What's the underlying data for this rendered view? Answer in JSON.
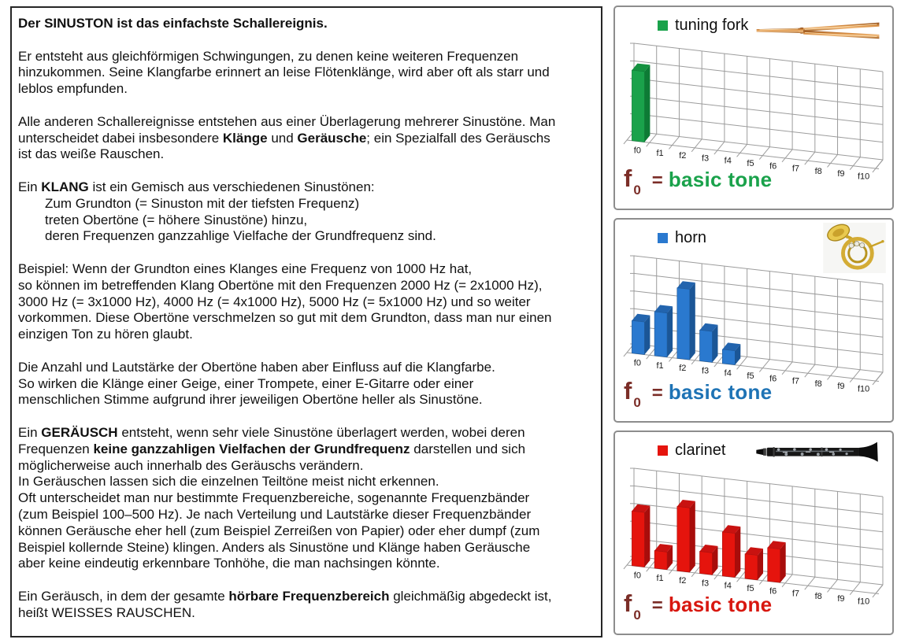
{
  "document": {
    "blocks": [
      {
        "lines": [
          {
            "seg": [
              {
                "t": "Der SINUSTON ist das einfachste Schallereignis.",
                "b": true
              }
            ]
          }
        ]
      },
      {
        "lines": [
          {
            "seg": [
              {
                "t": "Er entsteht aus gleichförmigen Schwingungen, zu denen keine weiteren Frequenzen"
              }
            ]
          },
          {
            "seg": [
              {
                "t": "hinzukommen. Seine Klangfarbe erinnert an leise Flötenklänge, wird aber oft als starr und"
              }
            ]
          },
          {
            "seg": [
              {
                "t": "leblos empfunden."
              }
            ]
          }
        ]
      },
      {
        "lines": [
          {
            "seg": [
              {
                "t": "Alle anderen Schallereignisse entstehen aus einer Überlagerung mehrerer Sinustöne. Man"
              }
            ]
          },
          {
            "seg": [
              {
                "t": "unterscheidet dabei insbesondere "
              },
              {
                "t": "Klänge",
                "b": true
              },
              {
                "t": " und "
              },
              {
                "t": "Geräusche",
                "b": true
              },
              {
                "t": "; ein Spezialfall des Geräuschs"
              }
            ]
          },
          {
            "seg": [
              {
                "t": "ist das weiße Rauschen."
              }
            ]
          }
        ]
      },
      {
        "lines": [
          {
            "seg": [
              {
                "t": "Ein "
              },
              {
                "t": "KLANG",
                "b": true
              },
              {
                "t": " ist ein Gemisch aus verschiedenen Sinustönen:"
              }
            ]
          },
          {
            "indent": true,
            "seg": [
              {
                "t": "Zum Grundton (= Sinuston mit der tiefsten Frequenz)"
              }
            ]
          },
          {
            "indent": true,
            "seg": [
              {
                "t": "treten Obertöne (= höhere Sinustöne) hinzu,"
              }
            ]
          },
          {
            "indent": true,
            "seg": [
              {
                "t": "deren Frequenzen ganzzahlige Vielfache der Grundfrequenz sind."
              }
            ]
          }
        ]
      },
      {
        "lines": [
          {
            "seg": [
              {
                "t": "Beispiel: Wenn der Grundton eines Klanges eine Frequenz von 1000 Hz hat,"
              }
            ]
          },
          {
            "seg": [
              {
                "t": "so können im betreffenden Klang Obertöne mit den Frequenzen 2000 Hz (= 2x1000 Hz),"
              }
            ]
          },
          {
            "seg": [
              {
                "t": "3000 Hz (= 3x1000 Hz), 4000 Hz (= 4x1000 Hz), 5000 Hz (= 5x1000 Hz) und so weiter"
              }
            ]
          },
          {
            "seg": [
              {
                "t": "vorkommen. Diese Obertöne verschmelzen so gut mit dem Grundton, dass man nur einen"
              }
            ]
          },
          {
            "seg": [
              {
                "t": "einzigen Ton zu hören glaubt."
              }
            ]
          }
        ]
      },
      {
        "lines": [
          {
            "seg": [
              {
                "t": "Die Anzahl und Lautstärke der Obertöne haben aber Einfluss auf die Klangfarbe."
              }
            ]
          },
          {
            "seg": [
              {
                "t": "So wirken die Klänge einer Geige, einer Trompete, einer E-Gitarre oder einer"
              }
            ]
          },
          {
            "seg": [
              {
                "t": "menschlichen Stimme aufgrund ihrer jeweiligen Obertöne heller als Sinustöne."
              }
            ]
          }
        ]
      },
      {
        "lines": [
          {
            "seg": [
              {
                "t": "Ein "
              },
              {
                "t": "GERÄUSCH",
                "b": true
              },
              {
                "t": " entsteht, wenn sehr viele Sinustöne überlagert werden, wobei deren"
              }
            ]
          },
          {
            "seg": [
              {
                "t": "Frequenzen "
              },
              {
                "t": "keine ganzzahligen Vielfachen der Grundfrequenz",
                "b": true
              },
              {
                "t": " darstellen und sich"
              }
            ]
          },
          {
            "seg": [
              {
                "t": "möglicherweise auch innerhalb des Geräuschs verändern."
              }
            ]
          },
          {
            "seg": [
              {
                "t": "In Geräuschen lassen sich die einzelnen Teiltöne meist nicht erkennen."
              }
            ]
          },
          {
            "seg": [
              {
                "t": "Oft unterscheidet man nur bestimmte Frequenzbereiche, sogenannte Frequenzbänder"
              }
            ]
          },
          {
            "seg": [
              {
                "t": "(zum Beispiel 100–500 Hz). Je nach Verteilung und Lautstärke dieser Frequenzbänder"
              }
            ]
          },
          {
            "seg": [
              {
                "t": "können Geräusche eher hell (zum Beispiel Zerreißen von Papier) oder eher dumpf (zum"
              }
            ]
          },
          {
            "seg": [
              {
                "t": "Beispiel kollernde Steine) klingen. Anders als Sinustöne und Klänge haben Geräusche"
              }
            ]
          },
          {
            "seg": [
              {
                "t": "aber keine eindeutig erkennbare Tonhöhe, die man nachsingen könnte."
              }
            ]
          }
        ]
      },
      {
        "lines": [
          {
            "seg": [
              {
                "t": "Ein Geräusch, in dem der gesamte "
              },
              {
                "t": "hörbare Frequenzbereich",
                "b": true
              },
              {
                "t": " gleichmäßig abgedeckt ist,"
              }
            ]
          },
          {
            "seg": [
              {
                "t": "heißt WEISSES RAUSCHEN."
              }
            ]
          }
        ]
      }
    ]
  },
  "charts": [
    {
      "id": "tuning-fork",
      "legend": "tuning fork",
      "icon": "tuning-fork-icon",
      "accent": "#1aa24b",
      "bar_side": "#0d7b35",
      "bar_top": "#14913f",
      "grid_color": "#9c9c9c",
      "caption": {
        "f": "f",
        "sub": "0",
        "eq": "=",
        "label": "basic tone",
        "f_color": "#7b2d27",
        "eq_color": "#7b2d27",
        "label_color": "#1aa24b"
      },
      "chart_data": {
        "type": "bar",
        "style": "3d-column",
        "categories": [
          "f0",
          "f1",
          "f2",
          "f3",
          "f4",
          "f5",
          "f6",
          "f7",
          "f8",
          "f9",
          "f10"
        ],
        "values": [
          4,
          0,
          0,
          0,
          0,
          0,
          0,
          0,
          0,
          0,
          0
        ],
        "ylim": [
          0,
          5
        ],
        "gridlines": 5,
        "value_axis_labels": "none",
        "legend": "tuning fork",
        "annotation": "f0 = basic tone"
      }
    },
    {
      "id": "horn",
      "legend": "horn",
      "icon": "french-horn-icon",
      "accent": "#2a79cf",
      "bar_side": "#1b5696",
      "bar_top": "#2264ae",
      "grid_color": "#9c9c9c",
      "caption": {
        "f": "f",
        "sub": "0",
        "eq": "=",
        "label": "basic tone",
        "f_color": "#7b2d27",
        "eq_color": "#7b2d27",
        "label_color": "#1e73b5"
      },
      "chart_data": {
        "type": "bar",
        "style": "3d-column",
        "categories": [
          "f0",
          "f1",
          "f2",
          "f3",
          "f4",
          "f5",
          "f6",
          "f7",
          "f8",
          "f9",
          "f10"
        ],
        "values": [
          1.85,
          2.5,
          4,
          1.75,
          0.8,
          0,
          0,
          0,
          0,
          0,
          0
        ],
        "ylim": [
          0,
          5
        ],
        "gridlines": 5,
        "value_axis_labels": "none",
        "legend": "horn",
        "annotation": "f0 = basic tone"
      }
    },
    {
      "id": "clarinet",
      "legend": "clarinet",
      "icon": "clarinet-icon",
      "accent": "#e5140d",
      "bar_side": "#a80d0b",
      "bar_top": "#c91210",
      "grid_color": "#9c9c9c",
      "caption": {
        "f": "f",
        "sub": "0",
        "eq": "=",
        "label": "basic tone",
        "f_color": "#7b2d27",
        "eq_color": "#7b2d27",
        "label_color": "#d8170f"
      },
      "chart_data": {
        "type": "bar",
        "style": "3d-column",
        "categories": [
          "f0",
          "f1",
          "f2",
          "f3",
          "f4",
          "f5",
          "f6",
          "f7",
          "f8",
          "f9",
          "f10"
        ],
        "values": [
          3.1,
          1.0,
          3.65,
          1.25,
          2.5,
          1.4,
          1.9,
          0,
          0,
          0,
          0
        ],
        "ylim": [
          0,
          5
        ],
        "gridlines": 5,
        "value_axis_labels": "none",
        "legend": "clarinet",
        "annotation": "f0 = basic tone"
      }
    }
  ]
}
